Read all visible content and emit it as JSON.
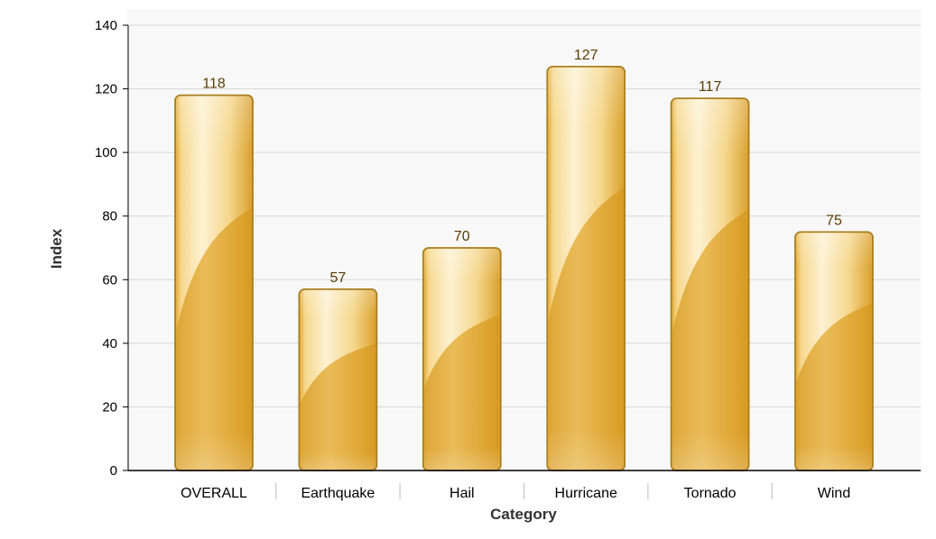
{
  "chart_data": {
    "type": "bar",
    "title": "",
    "xlabel": "Category",
    "ylabel": "Index",
    "categories": [
      "OVERALL",
      "Earthquake",
      "Hail",
      "Hurricane",
      "Tornado",
      "Wind"
    ],
    "values": [
      118,
      57,
      70,
      127,
      117,
      75
    ],
    "data_labels": [
      "118",
      "57",
      "70",
      "127",
      "117",
      "75"
    ],
    "ylim": [
      0,
      140
    ],
    "yticks": [
      0,
      20,
      40,
      60,
      80,
      100,
      120,
      140
    ],
    "ytick_labels": [
      "0",
      "20",
      "40",
      "60",
      "80",
      "100",
      "120",
      "140"
    ],
    "grid": true,
    "legend": "none",
    "colors": {
      "bar_light": "#fdf0cf",
      "bar_mid": "#f2c45e",
      "bar_dark": "#dca22c",
      "bar_edge": "#a77c1c",
      "grid": "#d6d6d6",
      "plot_bg": "#f8f8f8",
      "axis": "#000000"
    }
  }
}
